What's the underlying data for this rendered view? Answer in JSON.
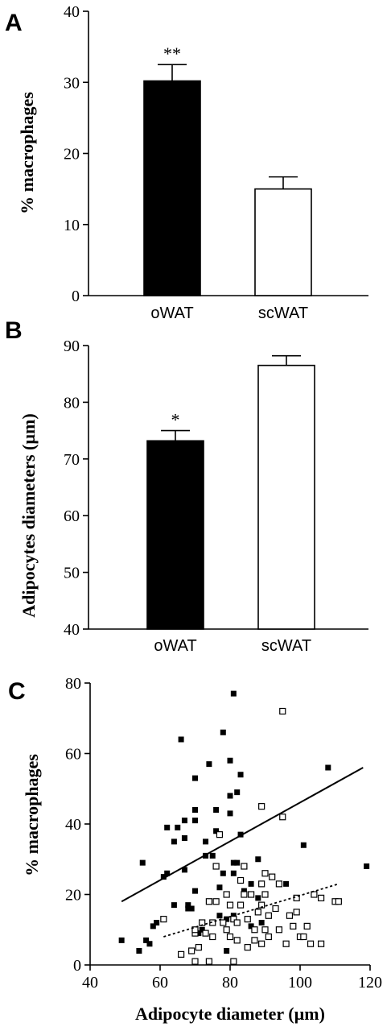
{
  "chart_data": [
    {
      "type": "bar",
      "panel": "A",
      "categories": [
        "oWAT",
        "scWAT"
      ],
      "values": [
        30.2,
        15.0
      ],
      "errors": [
        2.3,
        1.7
      ],
      "significance": [
        "**",
        ""
      ],
      "fills": [
        "#000000",
        "#ffffff"
      ],
      "ylabel": "% macrophages",
      "xlabel": "",
      "ylim": [
        0,
        40
      ],
      "yticks": [
        0,
        10,
        20,
        30,
        40
      ]
    },
    {
      "type": "bar",
      "panel": "B",
      "categories": [
        "oWAT",
        "scWAT"
      ],
      "values": [
        73.2,
        86.5
      ],
      "errors": [
        1.8,
        1.7
      ],
      "significance": [
        "*",
        ""
      ],
      "fills": [
        "#000000",
        "#ffffff"
      ],
      "ylabel": "Adipocytes diameters (µm)",
      "xlabel": "",
      "ylim": [
        40,
        90
      ],
      "yticks": [
        40,
        50,
        60,
        70,
        80,
        90
      ]
    },
    {
      "type": "scatter",
      "panel": "C",
      "xlabel": "Adipocyte diameter (µm)",
      "ylabel": "% macrophages",
      "xlim": [
        40,
        120
      ],
      "ylim": [
        0,
        80
      ],
      "xticks": [
        40,
        60,
        80,
        100,
        120
      ],
      "yticks": [
        0,
        20,
        40,
        60,
        80
      ],
      "series": [
        {
          "marker": "filled-square",
          "points": [
            [
              49,
              7
            ],
            [
              54,
              4
            ],
            [
              55,
              29
            ],
            [
              56,
              7
            ],
            [
              57,
              6
            ],
            [
              58,
              11
            ],
            [
              59,
              12
            ],
            [
              61,
              25
            ],
            [
              62,
              39
            ],
            [
              62,
              26
            ],
            [
              64,
              35
            ],
            [
              64,
              17
            ],
            [
              65,
              39
            ],
            [
              66,
              64
            ],
            [
              67,
              41
            ],
            [
              67,
              27
            ],
            [
              67,
              36
            ],
            [
              68,
              17
            ],
            [
              68,
              16
            ],
            [
              69,
              16
            ],
            [
              70,
              53
            ],
            [
              70,
              44
            ],
            [
              70,
              41
            ],
            [
              70,
              21
            ],
            [
              71,
              9
            ],
            [
              72,
              10
            ],
            [
              73,
              35
            ],
            [
              73,
              31
            ],
            [
              74,
              57
            ],
            [
              75,
              31
            ],
            [
              76,
              38
            ],
            [
              76,
              44
            ],
            [
              77,
              22
            ],
            [
              77,
              14
            ],
            [
              78,
              66
            ],
            [
              78,
              26
            ],
            [
              79,
              13
            ],
            [
              79,
              4
            ],
            [
              80,
              58
            ],
            [
              80,
              48
            ],
            [
              80,
              43
            ],
            [
              81,
              77
            ],
            [
              81,
              29
            ],
            [
              81,
              26
            ],
            [
              81,
              14
            ],
            [
              82,
              49
            ],
            [
              82,
              29
            ],
            [
              83,
              54
            ],
            [
              83,
              37
            ],
            [
              84,
              21
            ],
            [
              86,
              11
            ],
            [
              86,
              23
            ],
            [
              88,
              30
            ],
            [
              88,
              19
            ],
            [
              89,
              12
            ],
            [
              96,
              23
            ],
            [
              101,
              34
            ],
            [
              108,
              56
            ],
            [
              119,
              28
            ]
          ]
        },
        {
          "marker": "open-square",
          "points": [
            [
              61,
              13
            ],
            [
              66,
              3
            ],
            [
              69,
              4
            ],
            [
              70,
              9
            ],
            [
              70,
              10
            ],
            [
              70,
              1
            ],
            [
              71,
              5
            ],
            [
              72,
              12
            ],
            [
              73,
              9
            ],
            [
              74,
              1
            ],
            [
              74,
              18
            ],
            [
              75,
              12
            ],
            [
              75,
              8
            ],
            [
              76,
              28
            ],
            [
              76,
              18
            ],
            [
              77,
              37
            ],
            [
              78,
              12
            ],
            [
              79,
              20
            ],
            [
              79,
              10
            ],
            [
              80,
              17
            ],
            [
              80,
              8
            ],
            [
              81,
              13
            ],
            [
              81,
              1
            ],
            [
              82,
              12
            ],
            [
              82,
              7
            ],
            [
              83,
              24
            ],
            [
              83,
              17
            ],
            [
              84,
              28
            ],
            [
              84,
              20
            ],
            [
              85,
              13
            ],
            [
              85,
              5
            ],
            [
              86,
              20
            ],
            [
              87,
              7
            ],
            [
              87,
              10
            ],
            [
              88,
              15
            ],
            [
              89,
              45
            ],
            [
              89,
              23
            ],
            [
              89,
              17
            ],
            [
              89,
              6
            ],
            [
              90,
              26
            ],
            [
              90,
              20
            ],
            [
              90,
              10
            ],
            [
              91,
              8
            ],
            [
              91,
              14
            ],
            [
              92,
              25
            ],
            [
              93,
              16
            ],
            [
              94,
              10
            ],
            [
              94,
              23
            ],
            [
              95,
              72
            ],
            [
              95,
              42
            ],
            [
              96,
              6
            ],
            [
              97,
              14
            ],
            [
              98,
              11
            ],
            [
              99,
              19
            ],
            [
              99,
              15
            ],
            [
              100,
              8
            ],
            [
              101,
              8
            ],
            [
              102,
              11
            ],
            [
              103,
              6
            ],
            [
              104,
              20
            ],
            [
              106,
              6
            ],
            [
              106,
              19
            ],
            [
              110,
              18
            ],
            [
              111,
              18
            ]
          ]
        }
      ],
      "fits": [
        {
          "style": "solid",
          "x": [
            49,
            118
          ],
          "y": [
            18,
            56
          ]
        },
        {
          "style": "dotted",
          "x": [
            61,
            111
          ],
          "y": [
            8,
            23
          ]
        }
      ]
    }
  ]
}
